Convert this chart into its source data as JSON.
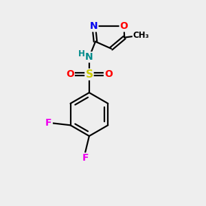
{
  "bg_color": "#eeeeee",
  "bond_color": "#000000",
  "bond_width": 1.6,
  "dbo": 0.032,
  "atom_colors": {
    "N_nh": "#008b8b",
    "H": "#008b8b",
    "S": "#cccc00",
    "O_sulfonyl": "#ff0000",
    "O_ring": "#ff0000",
    "N_ring": "#0000ee",
    "F": "#ee00ee",
    "CH3": "#000000"
  },
  "font_size": 10,
  "small_font_size": 8.5,
  "xlim": [
    -1.0,
    1.6
  ],
  "ylim": [
    -2.6,
    1.5
  ]
}
